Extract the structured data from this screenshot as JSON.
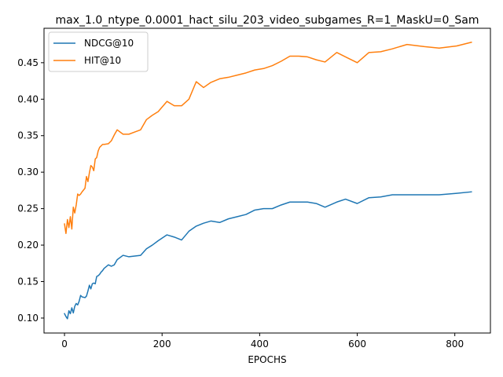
{
  "chart_data": {
    "type": "line",
    "title": "max_1.0_ntype_0.0001_hact_silu_203_video_subgames_R=1_MaskU=0_Sam",
    "xlabel": "EPOCHS",
    "ylabel": "",
    "xlim": [
      -42,
      873
    ],
    "ylim": [
      0.0795,
      0.4972
    ],
    "xticks": [
      0,
      200,
      400,
      600,
      800
    ],
    "yticks": [
      0.1,
      0.15,
      0.2,
      0.25,
      0.3,
      0.35,
      0.4,
      0.45
    ],
    "xtick_labels": [
      "0",
      "200",
      "400",
      "600",
      "800"
    ],
    "ytick_labels": [
      "0.10",
      "0.15",
      "0.20",
      "0.25",
      "0.30",
      "0.35",
      "0.40",
      "0.45"
    ],
    "grid": false,
    "legend_position": "upper-left",
    "series": [
      {
        "name": "NDCG@10",
        "color": "#1f77b4",
        "x": [
          0,
          3,
          6,
          9,
          12,
          15,
          18,
          21,
          24,
          27,
          30,
          33,
          36,
          42,
          45,
          48,
          51,
          54,
          57,
          60,
          63,
          66,
          69,
          72,
          75,
          78,
          81,
          90,
          96,
          102,
          108,
          120,
          132,
          144,
          156,
          168,
          180,
          192,
          210,
          225,
          240,
          255,
          270,
          285,
          300,
          318,
          336,
          354,
          372,
          390,
          408,
          426,
          444,
          462,
          480,
          498,
          516,
          534,
          558,
          576,
          600,
          624,
          648,
          672,
          702,
          738,
          768,
          804,
          834
        ],
        "y": [
          0.106,
          0.102,
          0.099,
          0.11,
          0.106,
          0.114,
          0.107,
          0.116,
          0.12,
          0.118,
          0.123,
          0.131,
          0.129,
          0.128,
          0.13,
          0.137,
          0.145,
          0.14,
          0.147,
          0.148,
          0.147,
          0.157,
          0.158,
          0.16,
          0.163,
          0.165,
          0.168,
          0.173,
          0.171,
          0.173,
          0.18,
          0.186,
          0.184,
          0.185,
          0.186,
          0.195,
          0.2,
          0.206,
          0.214,
          0.211,
          0.207,
          0.219,
          0.226,
          0.23,
          0.233,
          0.231,
          0.236,
          0.239,
          0.242,
          0.248,
          0.25,
          0.25,
          0.255,
          0.259,
          0.259,
          0.259,
          0.257,
          0.252,
          0.259,
          0.263,
          0.257,
          0.265,
          0.266,
          0.269,
          0.269,
          0.269,
          0.269,
          0.271,
          0.273
        ]
      },
      {
        "name": "HIT@10",
        "color": "#ff7f0e",
        "x": [
          0,
          3,
          6,
          9,
          12,
          15,
          18,
          21,
          24,
          27,
          30,
          33,
          36,
          42,
          45,
          48,
          51,
          54,
          57,
          60,
          63,
          66,
          69,
          72,
          75,
          78,
          81,
          90,
          96,
          102,
          108,
          120,
          132,
          144,
          156,
          168,
          180,
          192,
          210,
          225,
          240,
          255,
          270,
          285,
          300,
          318,
          336,
          354,
          372,
          390,
          408,
          426,
          444,
          462,
          480,
          498,
          516,
          534,
          558,
          576,
          600,
          624,
          648,
          672,
          702,
          738,
          768,
          804,
          834
        ],
        "y": [
          0.229,
          0.216,
          0.235,
          0.224,
          0.239,
          0.222,
          0.252,
          0.244,
          0.255,
          0.27,
          0.268,
          0.27,
          0.273,
          0.278,
          0.294,
          0.287,
          0.299,
          0.309,
          0.307,
          0.302,
          0.318,
          0.32,
          0.329,
          0.334,
          0.336,
          0.338,
          0.338,
          0.339,
          0.343,
          0.351,
          0.358,
          0.352,
          0.352,
          0.355,
          0.358,
          0.372,
          0.378,
          0.383,
          0.397,
          0.391,
          0.391,
          0.4,
          0.424,
          0.416,
          0.423,
          0.428,
          0.43,
          0.433,
          0.436,
          0.44,
          0.442,
          0.446,
          0.452,
          0.459,
          0.459,
          0.458,
          0.454,
          0.451,
          0.464,
          0.458,
          0.45,
          0.464,
          0.465,
          0.469,
          0.475,
          0.472,
          0.47,
          0.473,
          0.478
        ]
      }
    ]
  }
}
